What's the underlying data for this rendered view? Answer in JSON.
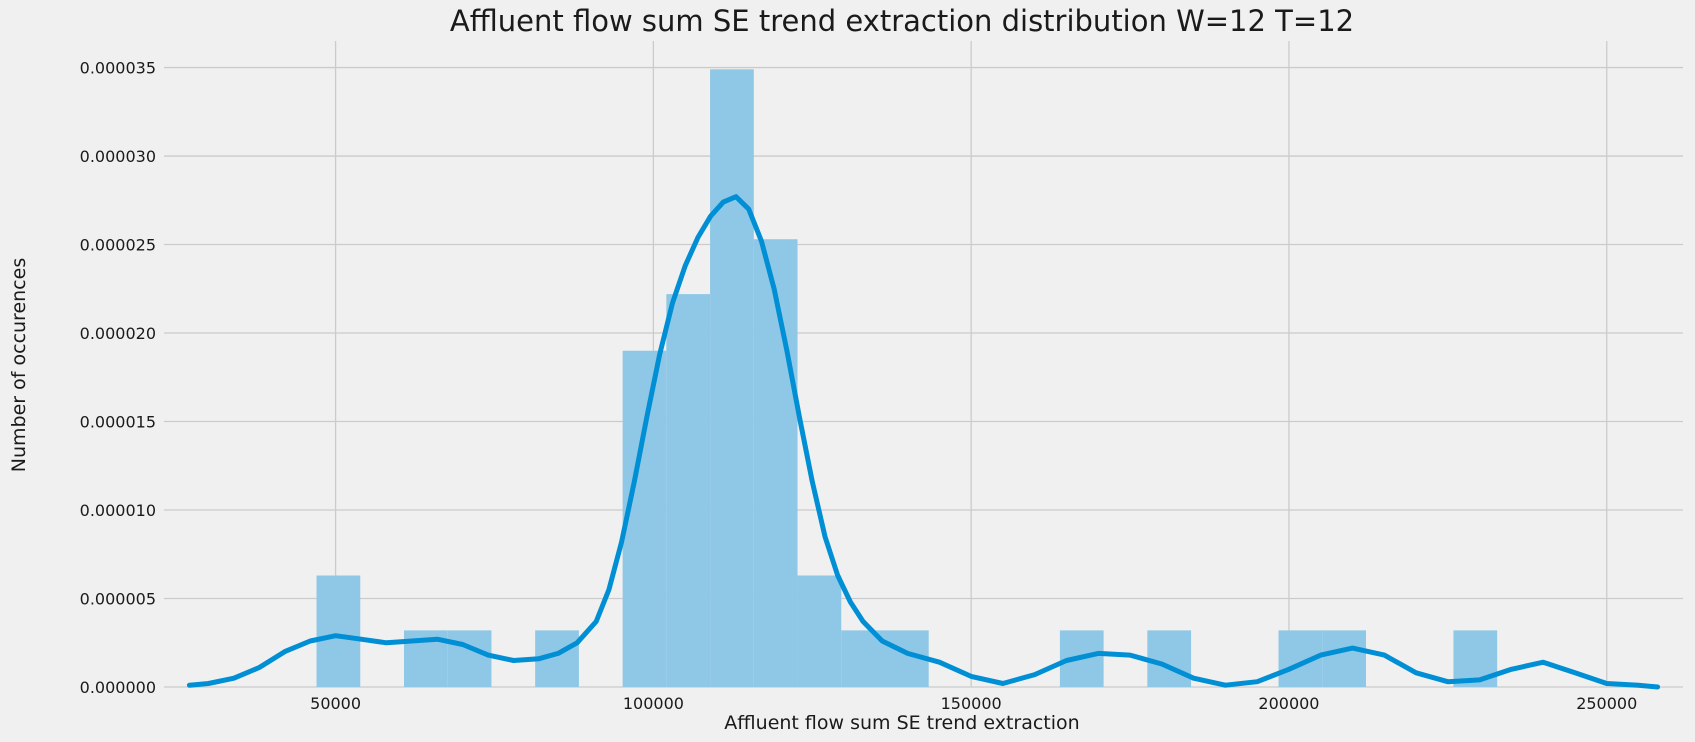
{
  "chart_data": {
    "type": "histogram",
    "title": "Affluent flow sum SE trend extraction distribution W=12 T=12",
    "xlabel": "Affluent flow sum SE trend extraction",
    "ylabel": "Number of occurences",
    "xlim": [
      23000,
      262000
    ],
    "ylim": [
      0,
      3.65e-05
    ],
    "xticks": [
      50000,
      100000,
      150000,
      200000,
      250000
    ],
    "xtick_labels": [
      "50000",
      "100000",
      "150000",
      "200000",
      "250000"
    ],
    "yticks": [
      0,
      5e-06,
      1e-05,
      1.5e-05,
      2e-05,
      2.5e-05,
      3e-05,
      3.5e-05
    ],
    "ytick_labels": [
      "0.000000",
      "0.000005",
      "0.000010",
      "0.000015",
      "0.000020",
      "0.000025",
      "0.000030",
      "0.000035"
    ],
    "grid": true,
    "bar_color": "#8fc8e6",
    "line_color": "#008fd5",
    "histogram": {
      "bin_start": 47000,
      "bin_width": 6880,
      "values": [
        6.3e-06,
        0,
        3.2e-06,
        3.2e-06,
        0,
        3.2e-06,
        0,
        1.9e-05,
        2.22e-05,
        3.49e-05,
        2.53e-05,
        6.3e-06,
        3.2e-06,
        3.2e-06,
        0,
        0,
        0,
        3.2e-06,
        0,
        3.2e-06,
        0,
        0,
        3.2e-06,
        3.2e-06,
        0,
        0,
        3.2e-06
      ]
    },
    "kde": {
      "x": [
        27000,
        30000,
        34000,
        38000,
        42000,
        46000,
        50000,
        54000,
        58000,
        62000,
        66000,
        70000,
        74000,
        78000,
        82000,
        85000,
        88000,
        91000,
        93000,
        95000,
        97000,
        99000,
        101000,
        103000,
        105000,
        107000,
        109000,
        111000,
        113000,
        115000,
        117000,
        119000,
        121000,
        123000,
        125000,
        127000,
        129000,
        131000,
        133000,
        136000,
        140000,
        145000,
        150000,
        155000,
        160000,
        165000,
        170000,
        175000,
        180000,
        185000,
        190000,
        195000,
        200000,
        205000,
        210000,
        215000,
        220000,
        225000,
        230000,
        235000,
        240000,
        245000,
        250000,
        255000,
        258000
      ],
      "y": [
        1e-07,
        2e-07,
        5e-07,
        1.1e-06,
        2e-06,
        2.6e-06,
        2.9e-06,
        2.7e-06,
        2.5e-06,
        2.6e-06,
        2.7e-06,
        2.4e-06,
        1.8e-06,
        1.5e-06,
        1.6e-06,
        1.9e-06,
        2.5e-06,
        3.7e-06,
        5.5e-06,
        8.2e-06,
        1.16e-05,
        1.53e-05,
        1.88e-05,
        2.17e-05,
        2.38e-05,
        2.54e-05,
        2.66e-05,
        2.74e-05,
        2.77e-05,
        2.7e-05,
        2.52e-05,
        2.25e-05,
        1.9e-05,
        1.52e-05,
        1.16e-05,
        8.5e-06,
        6.3e-06,
        4.8e-06,
        3.7e-06,
        2.6e-06,
        1.9e-06,
        1.4e-06,
        6e-07,
        2e-07,
        7e-07,
        1.5e-06,
        1.9e-06,
        1.8e-06,
        1.3e-06,
        5e-07,
        1e-07,
        3e-07,
        1e-06,
        1.8e-06,
        2.2e-06,
        1.8e-06,
        8e-07,
        3e-07,
        4e-07,
        1e-06,
        1.4e-06,
        8e-07,
        2e-07,
        1e-07,
        0
      ]
    }
  }
}
